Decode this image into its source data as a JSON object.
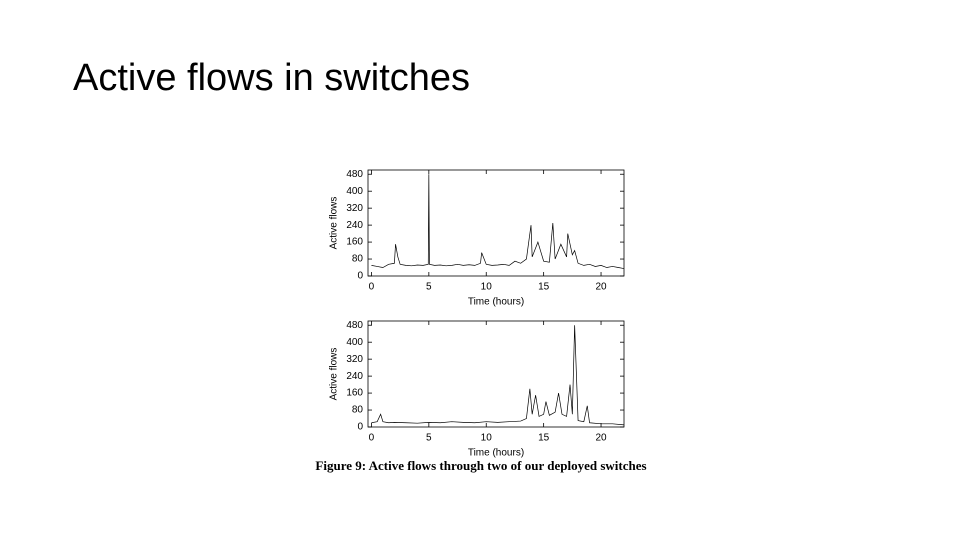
{
  "slide_title": "Active flows in switches",
  "caption": "Figure 9: Active flows through two of our deployed switches",
  "chart_data": [
    {
      "type": "line",
      "xlabel": "Time (hours)",
      "ylabel": "Active flows",
      "color": "#000000",
      "xlim": [
        -0.3,
        22
      ],
      "ylim": [
        0,
        500
      ],
      "xticks": [
        0,
        5,
        10,
        15,
        20
      ],
      "yticks": [
        0,
        80,
        160,
        240,
        320,
        400,
        480
      ],
      "x": [
        0,
        0.5,
        1,
        1.5,
        2,
        2.1,
        2.3,
        2.5,
        3,
        3.5,
        4,
        4.5,
        4.95,
        5,
        5.05,
        5.5,
        6,
        6.5,
        7,
        7.5,
        8,
        8.5,
        9,
        9.5,
        9.6,
        10,
        10.5,
        11,
        11.5,
        12,
        12.5,
        13,
        13.5,
        13.9,
        14,
        14.5,
        15,
        15.5,
        15.8,
        16,
        16.5,
        17,
        17.1,
        17.5,
        17.7,
        18,
        18.5,
        19,
        19.5,
        20,
        20.5,
        21,
        21.5,
        22
      ],
      "values": [
        50,
        45,
        40,
        55,
        60,
        150,
        90,
        55,
        50,
        48,
        52,
        50,
        55,
        480,
        55,
        50,
        52,
        48,
        50,
        55,
        50,
        53,
        50,
        60,
        110,
        55,
        50,
        52,
        55,
        50,
        70,
        60,
        80,
        240,
        90,
        160,
        70,
        65,
        250,
        80,
        150,
        90,
        200,
        100,
        120,
        60,
        50,
        55,
        45,
        50,
        40,
        45,
        40,
        35
      ]
    },
    {
      "type": "line",
      "xlabel": "Time (hours)",
      "ylabel": "Active flows",
      "color": "#000000",
      "xlim": [
        -0.3,
        22
      ],
      "ylim": [
        0,
        500
      ],
      "xticks": [
        0,
        5,
        10,
        15,
        20
      ],
      "yticks": [
        0,
        80,
        160,
        240,
        320,
        400,
        480
      ],
      "x": [
        0,
        0.5,
        0.8,
        1,
        1.5,
        2,
        3,
        4,
        5,
        6,
        7,
        8,
        9,
        10,
        11,
        12,
        13,
        13.5,
        13.8,
        14,
        14.3,
        14.6,
        15,
        15.2,
        15.5,
        16,
        16.3,
        16.6,
        17,
        17.3,
        17.5,
        17.7,
        18,
        18.5,
        18.8,
        19,
        20,
        21,
        22
      ],
      "values": [
        20,
        25,
        60,
        25,
        20,
        22,
        20,
        18,
        22,
        20,
        25,
        22,
        20,
        25,
        22,
        25,
        28,
        40,
        180,
        60,
        150,
        50,
        60,
        120,
        55,
        70,
        160,
        60,
        50,
        200,
        60,
        480,
        30,
        25,
        100,
        20,
        15,
        15,
        10
      ]
    }
  ]
}
